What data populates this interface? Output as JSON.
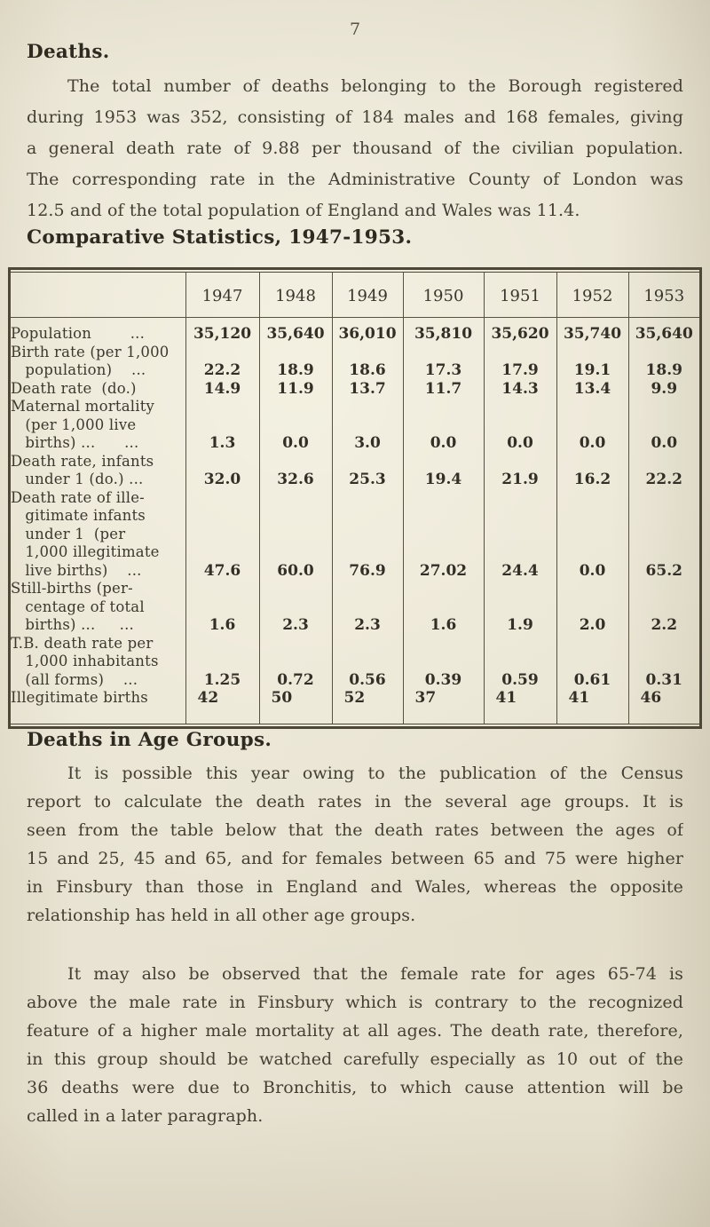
{
  "page": {
    "number": "7"
  },
  "colors": {
    "paper": "#e8e3d2",
    "ink": "#433e33",
    "heading_ink": "#2e2a20",
    "table_border": "#4c4736"
  },
  "sections": {
    "deaths": {
      "heading": "Deaths.",
      "paragraph_lines": [
        "The total number of deaths belonging to the Borough registered",
        "during 1953 was 352, consisting of 184 males and 168 females, giving",
        "a general death rate of 9.88 per thousand of the civilian population.",
        "The corresponding rate in the Administrative County of London was",
        "12.5 and of the total population of England and Wales was 11.4."
      ]
    },
    "comparative": {
      "heading": "Comparative Statistics, 1947-1953."
    },
    "age_groups": {
      "heading": "Deaths in Age Groups.",
      "paragraph1_lines": [
        "It is possible this year owing to the publication of the Census",
        "report to calculate the death rates in the several age groups.  It is",
        "seen from the table below that the death rates between the ages of",
        "15 and 25, 45 and 65, and for females between 65 and 75 were higher",
        "in Finsbury than those in England and Wales, whereas the opposite",
        "relationship has held in all other age groups."
      ],
      "paragraph2_lines": [
        "It may also be observed that the female rate for ages 65-74 is",
        "above the male rate in Finsbury which is contrary to the recognized",
        "feature of a higher male mortality at all ages.  The death rate, therefore,",
        "in this group should be watched carefully especially as 10 out of the",
        "36 deaths were due to Bronchitis, to which cause attention will be",
        "called in a later paragraph."
      ]
    }
  },
  "table": {
    "years": [
      "1947",
      "1948",
      "1949",
      "1950",
      "1951",
      "1952",
      "1953"
    ],
    "rows": [
      {
        "label_lines": [
          "Population        ..."
        ],
        "values": [
          "35,120",
          "35,640",
          "36,010",
          "35,810",
          "35,620",
          "35,740",
          "35,640"
        ],
        "values_align": "center"
      },
      {
        "label_lines": [
          "Birth rate (per 1,000",
          "   population)    ..."
        ],
        "values": [
          "22.2",
          "18.9",
          "18.6",
          "17.3",
          "17.9",
          "19.1",
          "18.9"
        ],
        "values_align": "center"
      },
      {
        "label_lines": [
          "Death rate  (do.)"
        ],
        "values": [
          "14.9",
          "11.9",
          "13.7",
          "11.7",
          "14.3",
          "13.4",
          "9.9"
        ],
        "values_align": "center"
      },
      {
        "label_lines": [
          "Maternal mortality",
          "   (per 1,000 live",
          "   births) ...      ..."
        ],
        "values": [
          "1.3",
          "0.0",
          "3.0",
          "0.0",
          "0.0",
          "0.0",
          "0.0"
        ],
        "values_align": "center"
      },
      {
        "label_lines": [
          "Death rate, infants",
          "   under 1 (do.) ..."
        ],
        "values": [
          "32.0",
          "32.6",
          "25.3",
          "19.4",
          "21.9",
          "16.2",
          "22.2"
        ],
        "values_align": "center"
      },
      {
        "label_lines": [
          "Death rate of ille-",
          "   gitimate infants",
          "   under 1  (per",
          "   1,000 illegitimate",
          "   live births)    ..."
        ],
        "values": [
          "47.6",
          "60.0",
          "76.9",
          "27.02",
          "24.4",
          "0.0",
          "65.2"
        ],
        "values_align": "center"
      },
      {
        "label_lines": [
          "Still-births (per-",
          "   centage of total",
          "   births) ...     ..."
        ],
        "values": [
          "1.6",
          "2.3",
          "2.3",
          "1.6",
          "1.9",
          "2.0",
          "2.2"
        ],
        "values_align": "center"
      },
      {
        "label_lines": [
          "T.B. death rate per",
          "   1,000 inhabitants",
          "   (all forms)    ..."
        ],
        "values": [
          "1.25",
          "0.72",
          "0.56",
          "0.39",
          "0.59",
          "0.61",
          "0.31"
        ],
        "values_align": "center"
      },
      {
        "label_lines": [
          "Illegitimate births"
        ],
        "values": [
          "42",
          "50",
          "52",
          "37",
          "41",
          "41",
          "46"
        ],
        "values_align": "left"
      }
    ]
  }
}
